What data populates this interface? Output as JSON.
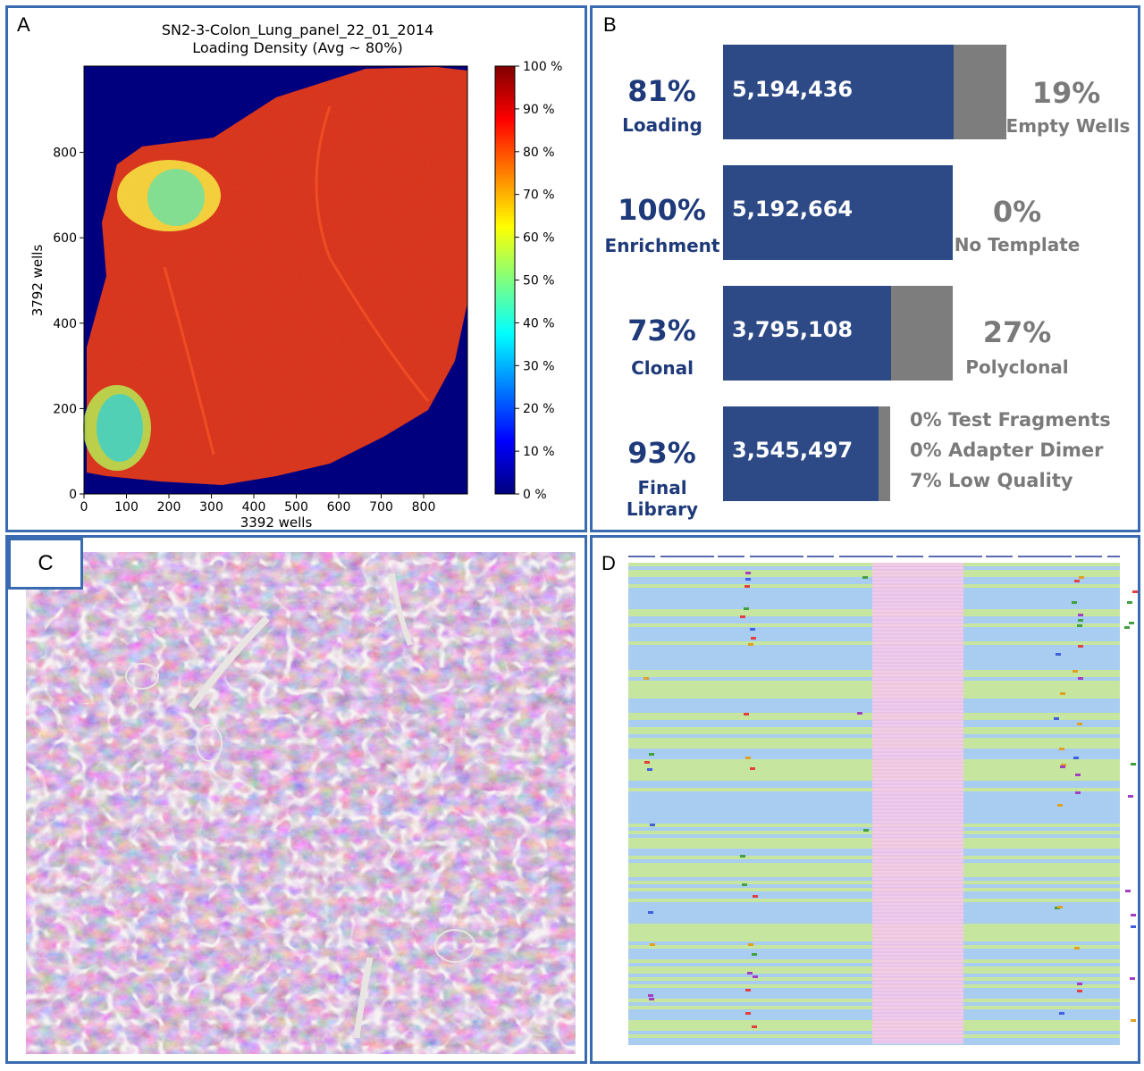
{
  "panels": {
    "a": {
      "label": "A"
    },
    "b": {
      "label": "B"
    },
    "c": {
      "label": "C"
    },
    "d": {
      "label": "D"
    }
  },
  "heatmap": {
    "title_line1": "SN2-3-Colon_Lung_panel_22_01_2014",
    "title_line2": "Loading Density (Avg ~ 80%)",
    "xlabel": "3392 wells",
    "ylabel": "3792 wells",
    "x_ticks": [
      "0",
      "100",
      "200",
      "300",
      "400",
      "500",
      "600",
      "700",
      "800"
    ],
    "y_ticks": [
      "0",
      "200",
      "400",
      "600",
      "800"
    ],
    "colorbar_ticks": [
      "0 %",
      "10 %",
      "20 %",
      "30 %",
      "40 %",
      "50 %",
      "60 %",
      "70 %",
      "80 %",
      "90 %",
      "100 %"
    ],
    "colors": {
      "low": "#00007f",
      "mid": "#7fff7f",
      "high": "#7f0000",
      "chip": "#e02810"
    }
  },
  "metrics": [
    {
      "pct": "81%",
      "label": "Loading",
      "value": "5,194,436",
      "fraction": 0.81,
      "right_pct": "19%",
      "right_label": "Empty Wells"
    },
    {
      "pct": "100%",
      "label": "Enrichment",
      "value": "5,192,664",
      "fraction": 1.0,
      "right_pct": "0%",
      "right_label": "No Template"
    },
    {
      "pct": "73%",
      "label": "Clonal",
      "value": "3,795,108",
      "fraction": 0.73,
      "right_pct": "27%",
      "right_label": "Polyclonal"
    },
    {
      "pct": "93%",
      "label": "Final Library",
      "value": "3,545,497",
      "fraction": 0.93,
      "right_lines": [
        "0% Test Fragments",
        "0% Adapter Dimer",
        "7% Low Quality"
      ]
    }
  ],
  "colors": {
    "bar": "#2d4a86",
    "grey": "#7d7d7d",
    "pct_text": "#1f3a7a",
    "border": "#3a6bb0",
    "alignment_blue": "#a9cdf0",
    "alignment_green": "#c6e6a0",
    "alignment_pink": "#f2bfe8",
    "tissue_base": "#6e4f6d"
  }
}
